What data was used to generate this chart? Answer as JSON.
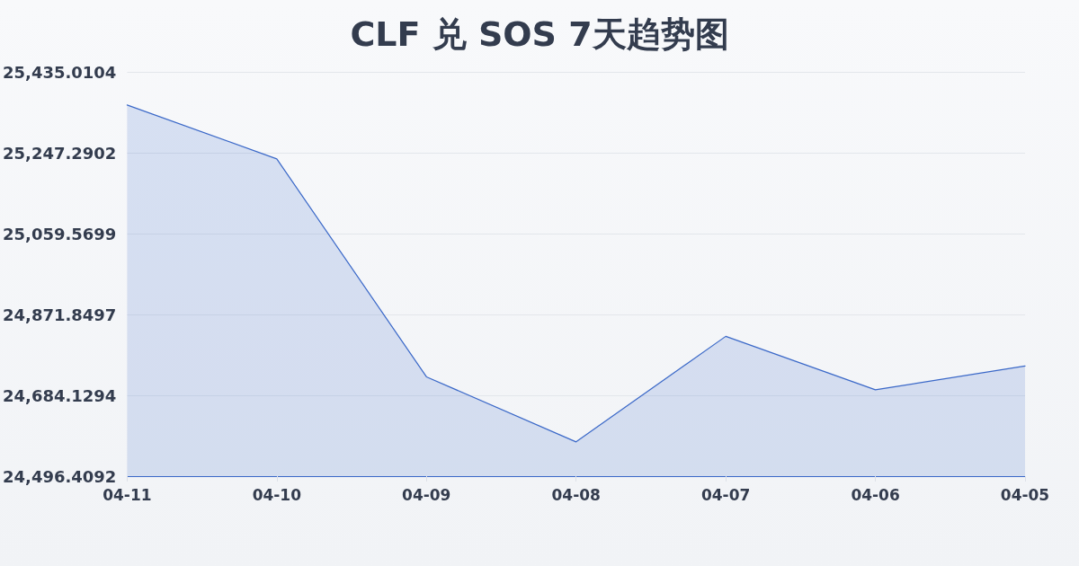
{
  "chart_data": {
    "type": "area",
    "title": "CLF 兑 SOS 7天趋势图",
    "categories": [
      "04-11",
      "04-10",
      "04-09",
      "04-08",
      "04-07",
      "04-06",
      "04-05"
    ],
    "series": [
      {
        "color": "#3a68c8",
        "values": [
          25358,
          25233,
          24727,
          24576,
          24821,
          24697,
          24752
        ]
      }
    ],
    "ylim": [
      24496.4092,
      25435.0104
    ],
    "yticks": [
      {
        "value": 24496.4092,
        "label": "24,496.4092"
      },
      {
        "value": 24684.1294,
        "label": "24,684.1294"
      },
      {
        "value": 24871.8497,
        "label": "24,871.8497"
      },
      {
        "value": 25059.5699,
        "label": "25,059.5699"
      },
      {
        "value": 25247.2902,
        "label": "25,247.2902"
      },
      {
        "value": 25435.0104,
        "label": "25,435.0104"
      }
    ],
    "grid": "y",
    "marker": "none",
    "line_style": "solid"
  }
}
